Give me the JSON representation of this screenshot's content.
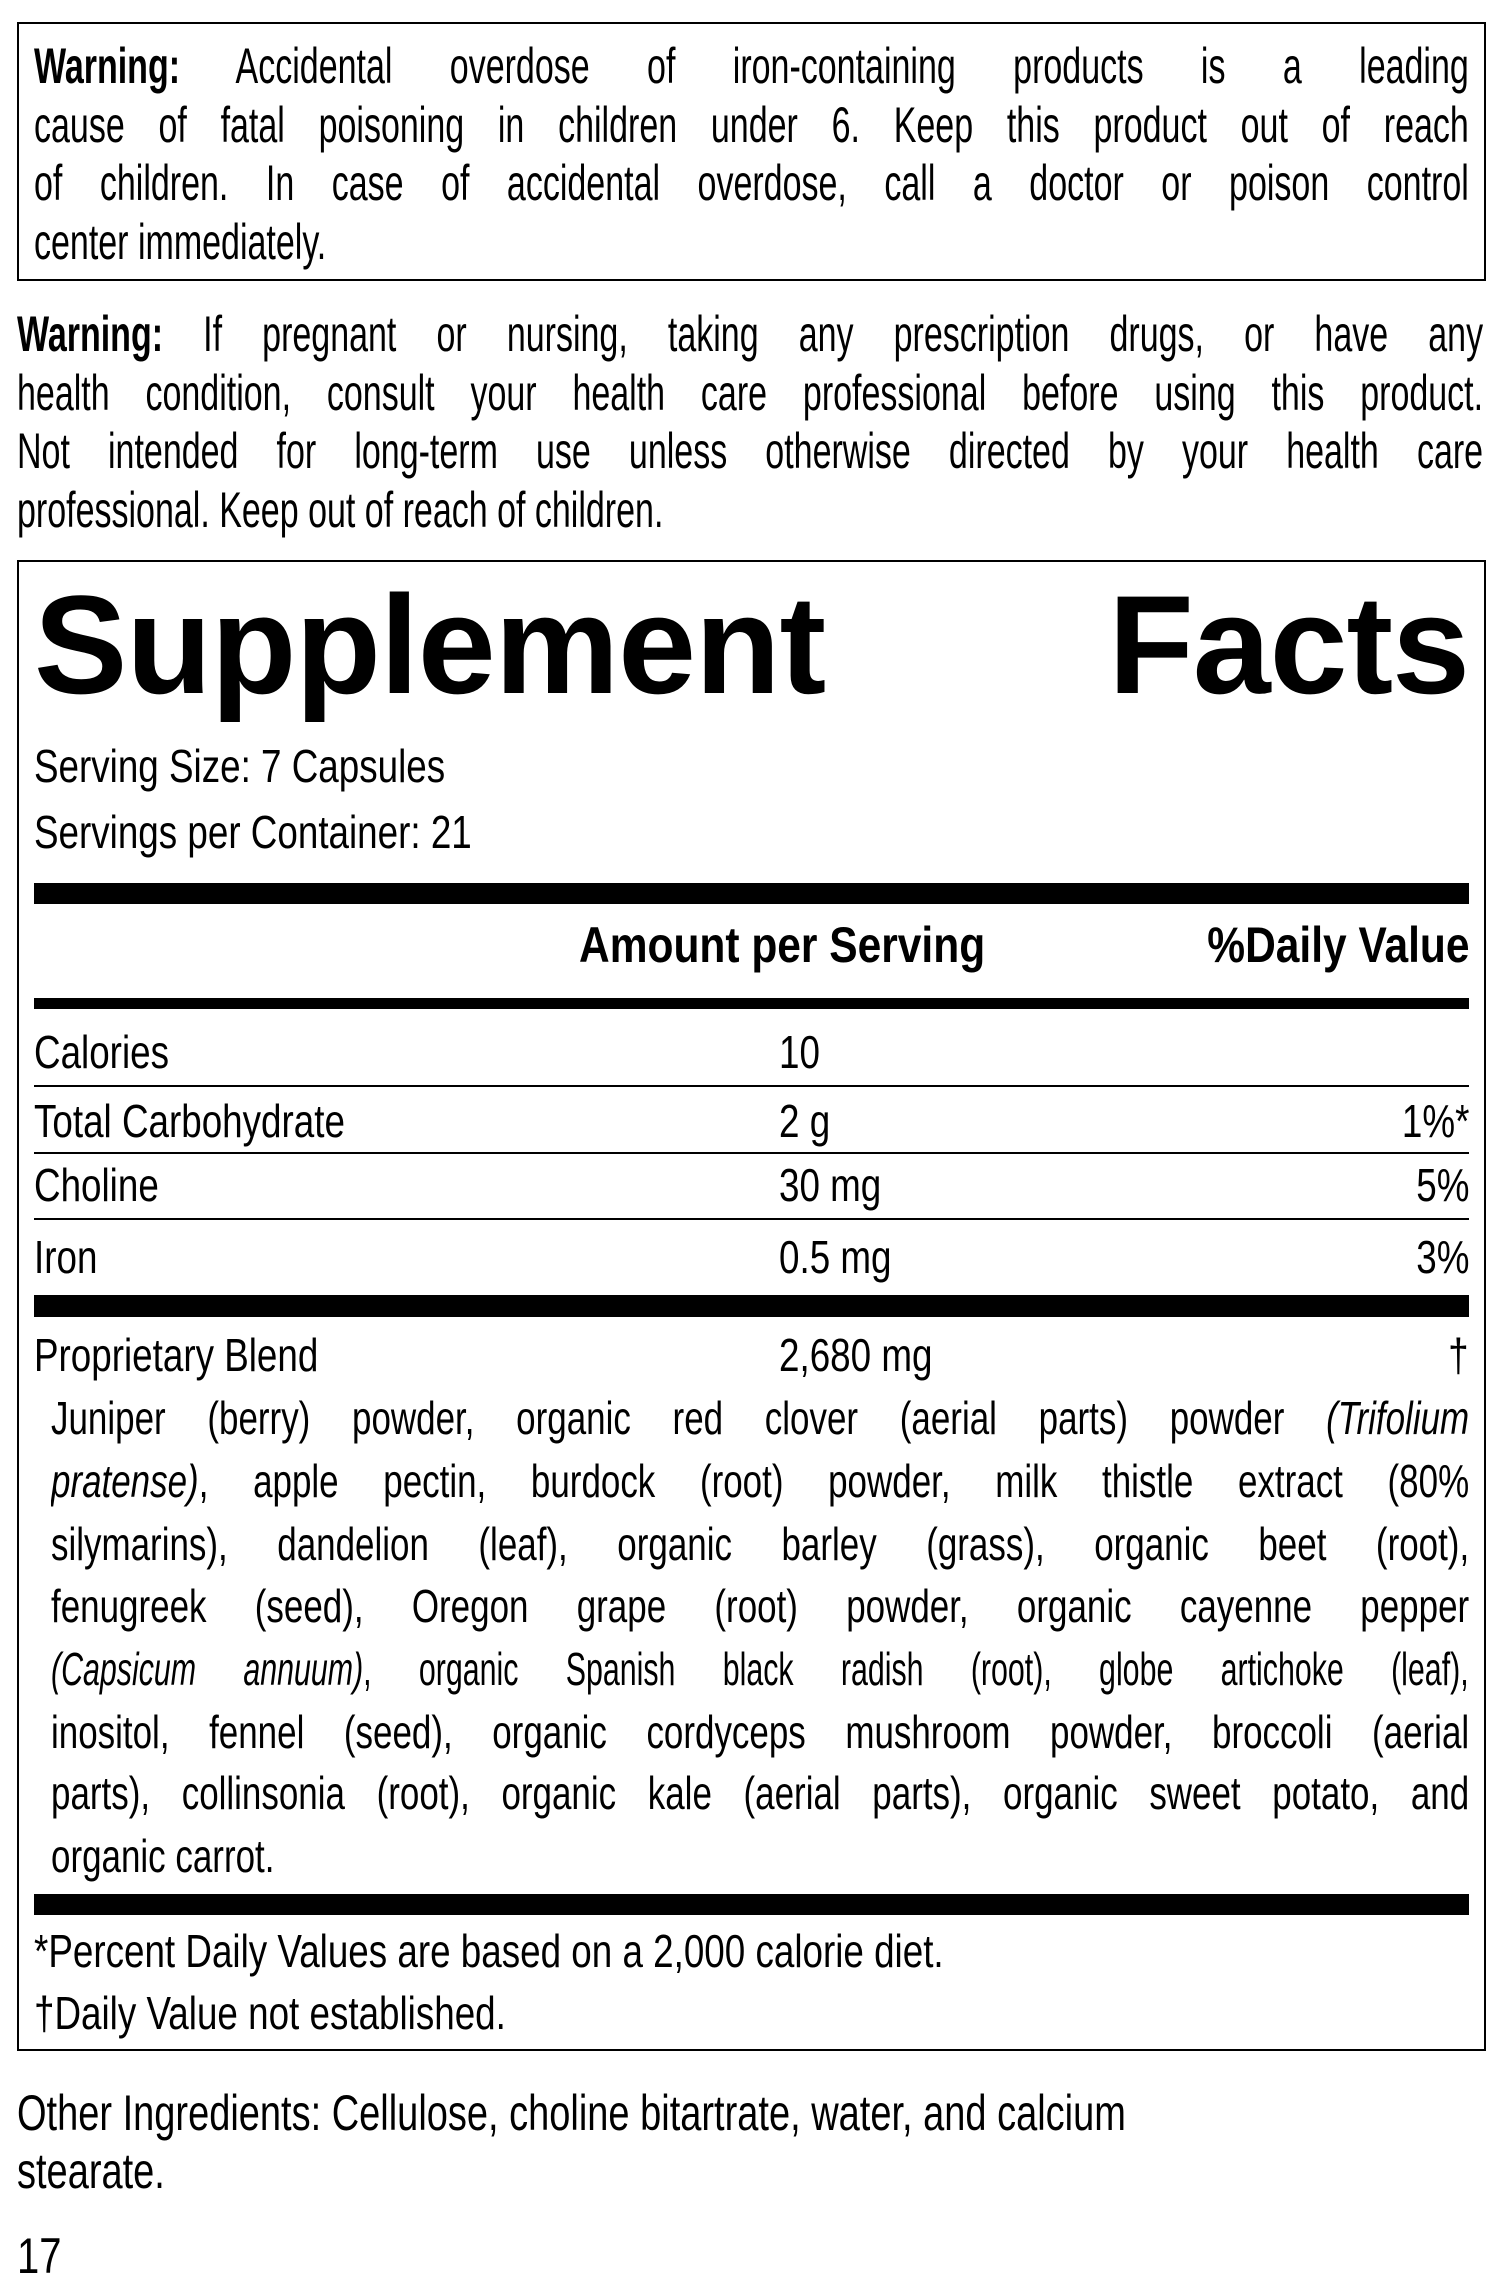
{
  "warning_child": {
    "label": "Warning:",
    "lines": [
      " Accidental overdose of iron-containing products is a leading",
      "cause of fatal poisoning in children under 6. Keep this product out of reach",
      "of children. In case of accidental overdose, call a doctor or poison control",
      "center immediately."
    ]
  },
  "warning_general": {
    "label": "Warning:",
    "lines": [
      " If pregnant or nursing, taking any prescription drugs, or have any",
      "health condition, consult your health care professional before using this product.",
      "Not intended for long-term use unless otherwise directed by your health care",
      "professional. Keep out of reach of children."
    ]
  },
  "facts": {
    "title_word1": "Supplement",
    "title_word2": "Facts",
    "serving_size": "Serving Size: 7 Capsules",
    "servings_per_container": "Servings per Container: 21",
    "header_amount": "Amount per Serving",
    "header_dv": "%Daily Value",
    "rows": [
      {
        "name": "Calories",
        "amount": "10",
        "dv": ""
      },
      {
        "name": "Total Carbohydrate",
        "amount": "2 g",
        "dv": "1%*"
      },
      {
        "name": "Choline",
        "amount": "30 mg",
        "dv": "5%"
      },
      {
        "name": "Iron",
        "amount": "0.5 mg",
        "dv": "3%"
      }
    ],
    "blend": {
      "name": "Proprietary Blend",
      "amount": "2,680 mg",
      "dv": "†",
      "ingredients": {
        "l1a": "Juniper (berry) powder, organic red clover (aerial parts) powder ",
        "l1b": "(Trifolium",
        "l2a": "pratense)",
        "l2b": ", apple pectin, burdock (root) powder, milk thistle extract (80%",
        "l3": "silymarins), dandelion (leaf), organic barley (grass), organic beet (root),",
        "l4": "fenugreek (seed), Oregon grape (root) powder, organic cayenne pepper",
        "l5a": "(Capsicum annuum)",
        "l5b": ", organic Spanish black radish (root), globe artichoke (leaf),",
        "l6": "inositol, fennel (seed), organic cordyceps mushroom powder, broccoli (aerial",
        "l7": "parts), collinsonia (root), organic kale (aerial parts), organic sweet potato, and",
        "l8": "organic carrot."
      }
    },
    "footnote_dv": "*Percent Daily Values are based on a 2,000 calorie diet.",
    "footnote_dagger": "†Daily Value not established."
  },
  "other_ingredients": {
    "line1": "Other Ingredients: Cellulose, choline bitartrate, water, and calcium",
    "line2": "stearate."
  },
  "page_number": "17"
}
